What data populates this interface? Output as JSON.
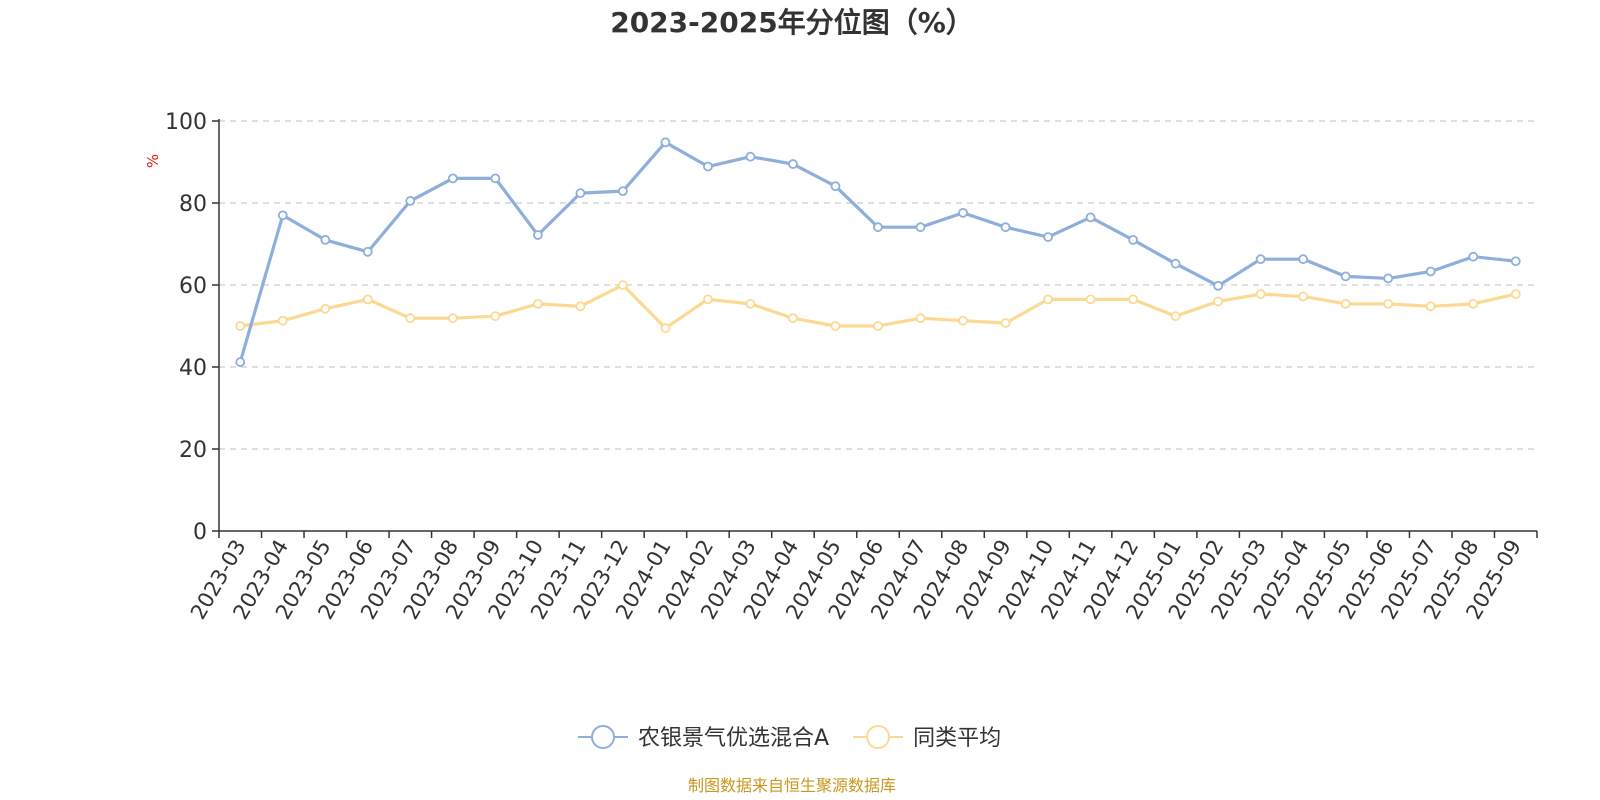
{
  "chart_data": {
    "type": "line",
    "title": "2023-2025年分位图（%）",
    "ylabel": "%",
    "ylim": [
      0,
      100
    ],
    "yticks": [
      "0",
      "20",
      "40",
      "60",
      "80",
      "100"
    ],
    "grid": true,
    "legend_position": "bottom",
    "x": [
      "2023-03",
      "2023-04",
      "2023-05",
      "2023-06",
      "2023-07",
      "2023-08",
      "2023-09",
      "2023-10",
      "2023-11",
      "2023-12",
      "2024-01",
      "2024-02",
      "2024-03",
      "2024-04",
      "2024-05",
      "2024-06",
      "2024-07",
      "2024-08",
      "2024-09",
      "2024-10",
      "2024-11",
      "2024-12",
      "2025-01",
      "2025-02",
      "2025-03",
      "2025-04",
      "2025-05",
      "2025-06",
      "2025-07",
      "2025-08",
      "2025-09"
    ],
    "series": [
      {
        "name": "农银景气优选混合A",
        "color": "#8eaedc",
        "values": [
          41.2,
          77.0,
          71.0,
          68.1,
          80.5,
          86.0,
          86.0,
          72.2,
          82.4,
          82.9,
          94.8,
          88.9,
          91.3,
          89.5,
          84.1,
          74.1,
          74.1,
          77.6,
          74.1,
          71.7,
          76.5,
          71.0,
          65.2,
          59.8,
          66.3,
          66.3,
          62.1,
          61.6,
          63.3,
          66.9,
          65.8
        ]
      },
      {
        "name": "同类平均",
        "color": "#fbd993",
        "values": [
          50.0,
          51.3,
          54.2,
          56.5,
          51.9,
          51.9,
          52.4,
          55.4,
          54.8,
          60.0,
          49.5,
          56.5,
          55.4,
          51.9,
          50.0,
          50.0,
          51.9,
          51.3,
          50.7,
          56.5,
          56.5,
          56.5,
          52.4,
          56.0,
          57.8,
          57.2,
          55.4,
          55.4,
          54.8,
          55.4,
          57.8
        ]
      }
    ],
    "source_text": "制图数据来自恒生聚源数据库",
    "source_color": "#c8971e",
    "unit_color": "#e02020",
    "axis_color": "#333333",
    "grid_color": "#cccccc"
  }
}
